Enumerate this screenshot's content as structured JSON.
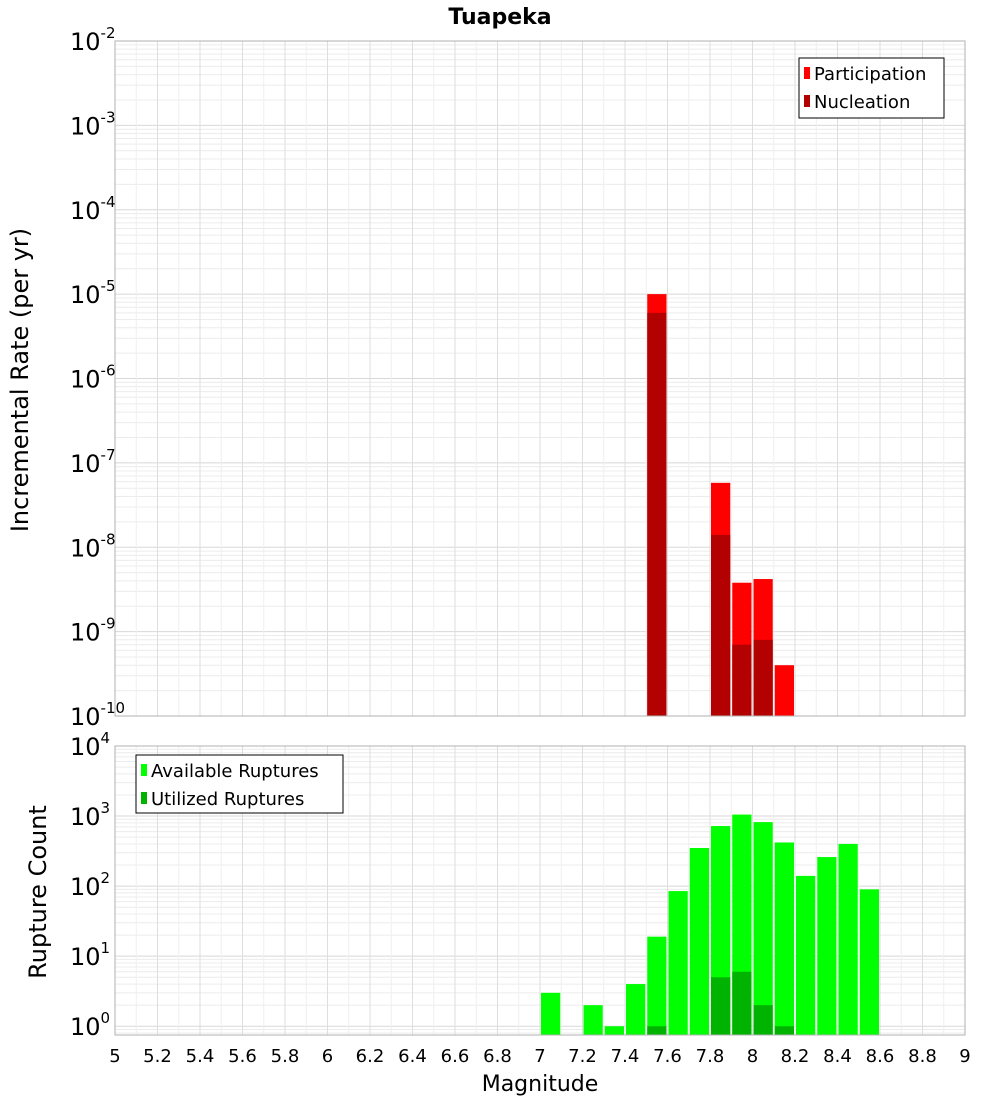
{
  "chart_data": [
    {
      "type": "bar",
      "title": "Tuapeka",
      "ylabel": "Incremental Rate (per yr)",
      "xlabel": "",
      "xlim": [
        5,
        9
      ],
      "ylim": [
        1e-10,
        0.01
      ],
      "yscale": "log",
      "grid": true,
      "legend_position": "top-right",
      "bin_width": 0.1,
      "series": [
        {
          "name": "Participation",
          "color": "#ff0000",
          "x": [
            7.55,
            7.85,
            7.95,
            8.05,
            8.15
          ],
          "values": [
            1e-05,
            5.8e-08,
            3.8e-09,
            4.2e-09,
            4e-10
          ]
        },
        {
          "name": "Nucleation",
          "color": "#b30000",
          "x": [
            7.55,
            7.85,
            7.95,
            8.05
          ],
          "values": [
            6e-06,
            1.4e-08,
            7e-10,
            8e-10
          ]
        }
      ],
      "y_ticks": [
        {
          "base": "10",
          "exp": "-10"
        },
        {
          "base": "10",
          "exp": "-9"
        },
        {
          "base": "10",
          "exp": "-8"
        },
        {
          "base": "10",
          "exp": "-7"
        },
        {
          "base": "10",
          "exp": "-6"
        },
        {
          "base": "10",
          "exp": "-5"
        },
        {
          "base": "10",
          "exp": "-4"
        },
        {
          "base": "10",
          "exp": "-3"
        },
        {
          "base": "10",
          "exp": "-2"
        }
      ]
    },
    {
      "type": "bar",
      "title": "",
      "ylabel": "Rupture Count",
      "xlabel": "Magnitude",
      "xlim": [
        5,
        9
      ],
      "ylim": [
        0.75,
        10000.0
      ],
      "yscale": "log",
      "grid": true,
      "legend_position": "top-left",
      "bin_width": 0.1,
      "series": [
        {
          "name": "Available Ruptures",
          "color": "#00ff00",
          "x": [
            7.05,
            7.25,
            7.35,
            7.45,
            7.55,
            7.65,
            7.75,
            7.85,
            7.95,
            8.05,
            8.15,
            8.25,
            8.35,
            8.45,
            8.55
          ],
          "values": [
            3,
            2,
            1,
            4,
            19,
            85,
            350,
            720,
            1050,
            820,
            420,
            140,
            260,
            400,
            90
          ]
        },
        {
          "name": "Utilized Ruptures",
          "color": "#00b300",
          "x": [
            7.55,
            7.85,
            7.95,
            8.05,
            8.15
          ],
          "values": [
            1,
            5,
            6,
            2,
            1
          ]
        }
      ],
      "y_ticks": [
        {
          "base": "10",
          "exp": "0"
        },
        {
          "base": "10",
          "exp": "1"
        },
        {
          "base": "10",
          "exp": "2"
        },
        {
          "base": "10",
          "exp": "3"
        },
        {
          "base": "10",
          "exp": "4"
        }
      ],
      "x_ticks": [
        "5",
        "5.2",
        "5.4",
        "5.6",
        "5.8",
        "6",
        "6.2",
        "6.4",
        "6.6",
        "6.8",
        "7",
        "7.2",
        "7.4",
        "7.6",
        "7.8",
        "8",
        "8.2",
        "8.4",
        "8.6",
        "8.8",
        "9"
      ]
    }
  ]
}
